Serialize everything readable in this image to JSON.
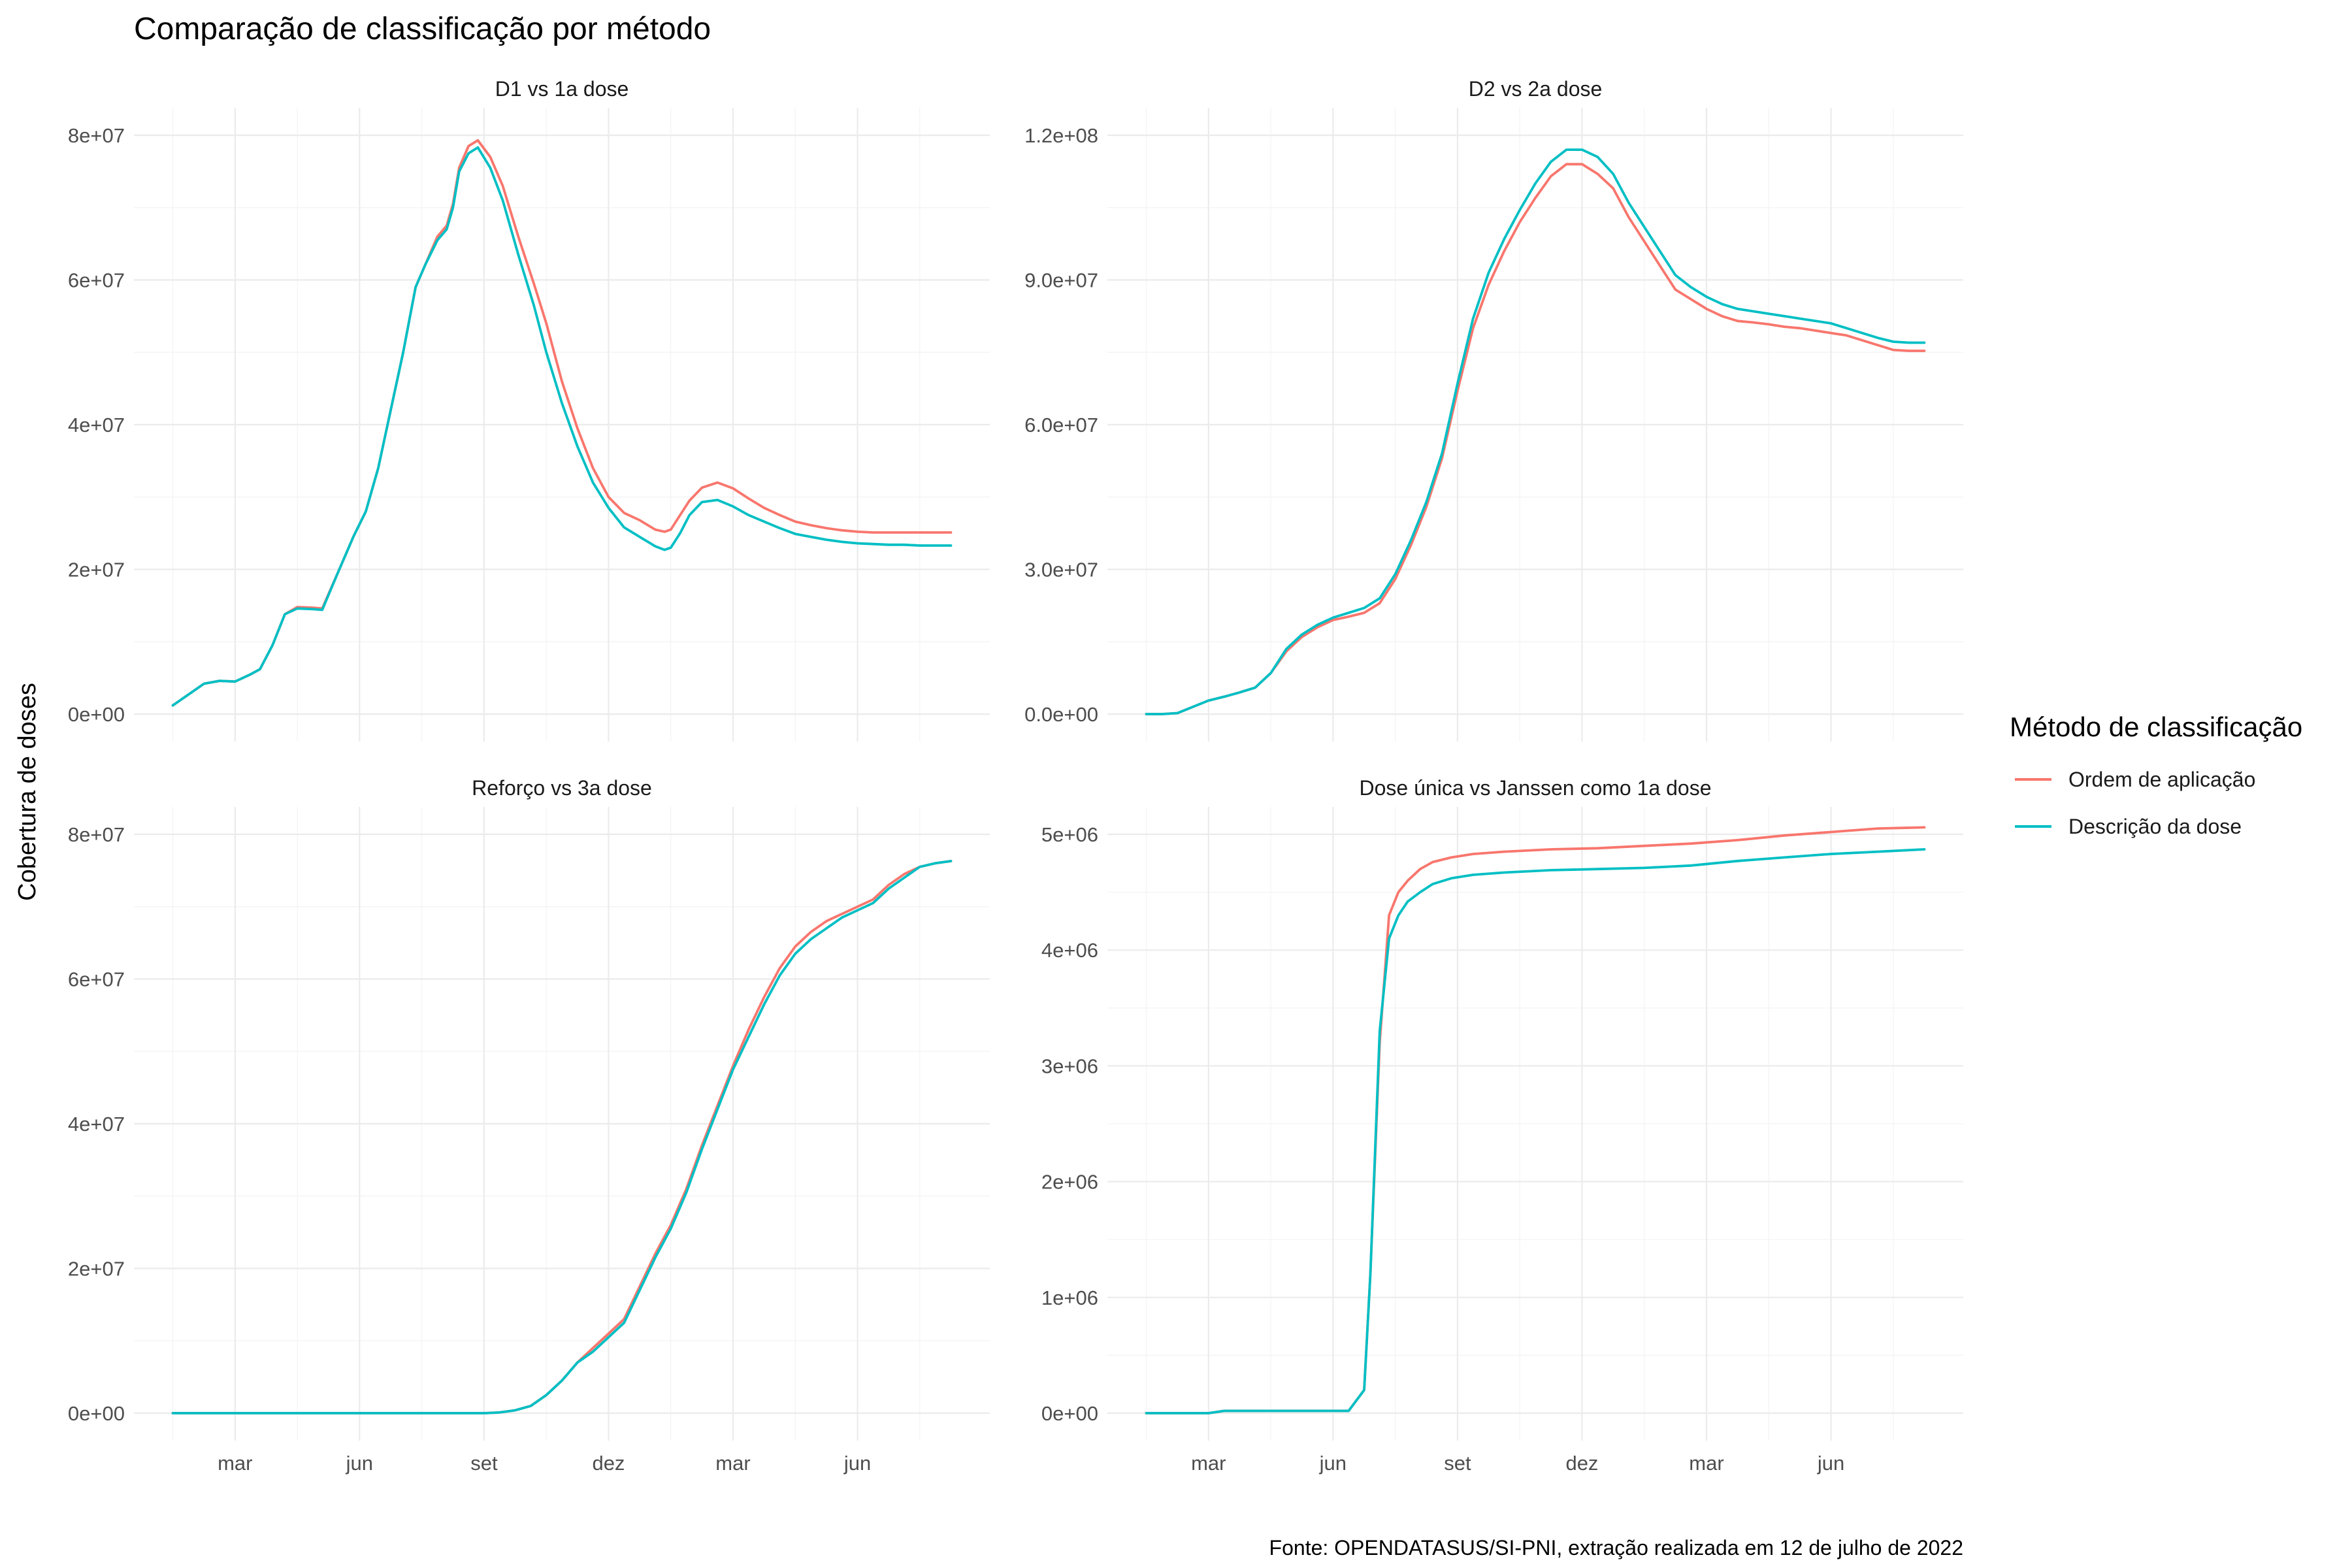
{
  "title": "Comparação de classificação por método",
  "ylabel": "Cobertura de doses",
  "caption": "Fonte: OPENDATASUS/SI-PNI, extração realizada em 12 de julho de 2022",
  "legend": {
    "title": "Método de classificação",
    "items": [
      {
        "label": "Ordem de aplicação",
        "color": "#F8766D"
      },
      {
        "label": "Descrição da dose",
        "color": "#00BFC4"
      }
    ]
  },
  "x_ticks": [
    "mar",
    "jun",
    "set",
    "dez",
    "mar",
    "jun"
  ],
  "chart_data": [
    {
      "type": "line",
      "title": "D1 vs 1a dose",
      "ylim": [
        0,
        80000000
      ],
      "y_ticks": [
        0,
        20000000,
        40000000,
        60000000,
        80000000
      ],
      "y_tick_labels": [
        "0e+00",
        "2e+07",
        "4e+07",
        "6e+07",
        "8e+07"
      ],
      "x": [
        0.0,
        0.6,
        1.0,
        1.5,
        2.0,
        2.5,
        2.8,
        3.2,
        3.6,
        4.0,
        4.5,
        4.8,
        5.3,
        5.8,
        6.2,
        6.6,
        7.0,
        7.4,
        7.8,
        8.1,
        8.5,
        8.8,
        9.0,
        9.2,
        9.5,
        9.8,
        10.2,
        10.6,
        11.1,
        11.6,
        12.0,
        12.5,
        13.0,
        13.5,
        14.0,
        14.5,
        15.0,
        15.5,
        15.8,
        16.0,
        16.3,
        16.6,
        17.0,
        17.5,
        18.0,
        18.5,
        19.0,
        19.5,
        20.0,
        20.5,
        21.0,
        21.5,
        22.0,
        22.5,
        23.0,
        23.5,
        24.0,
        24.5,
        25.0
      ],
      "series": [
        {
          "name": "Ordem de aplicação",
          "values": [
            1200000,
            3000000,
            4200000,
            4600000,
            4500000,
            5500000,
            6200000,
            9500000,
            13800000,
            14800000,
            14700000,
            14600000,
            19500000,
            24500000,
            28000000,
            34000000,
            42000000,
            50000000,
            59000000,
            62000000,
            66000000,
            67500000,
            70500000,
            75500000,
            78500000,
            79300000,
            77000000,
            73000000,
            66000000,
            59500000,
            54000000,
            46000000,
            39500000,
            34000000,
            30000000,
            27800000,
            26800000,
            25500000,
            25200000,
            25500000,
            27500000,
            29500000,
            31300000,
            32000000,
            31200000,
            29800000,
            28500000,
            27500000,
            26600000,
            26100000,
            25700000,
            25400000,
            25200000,
            25100000,
            25100000,
            25100000,
            25100000,
            25100000,
            25100000
          ]
        },
        {
          "name": "Descrição da dose",
          "values": [
            1200000,
            3000000,
            4200000,
            4600000,
            4500000,
            5500000,
            6200000,
            9500000,
            13800000,
            14600000,
            14500000,
            14400000,
            19500000,
            24500000,
            28000000,
            34000000,
            42000000,
            50000000,
            59000000,
            62000000,
            65500000,
            67000000,
            70000000,
            75000000,
            77500000,
            78300000,
            75500000,
            71000000,
            63500000,
            56500000,
            50000000,
            43000000,
            37000000,
            32000000,
            28500000,
            25800000,
            24500000,
            23200000,
            22700000,
            23000000,
            25000000,
            27500000,
            29300000,
            29600000,
            28700000,
            27500000,
            26600000,
            25700000,
            24900000,
            24500000,
            24100000,
            23800000,
            23600000,
            23500000,
            23400000,
            23400000,
            23300000,
            23300000,
            23300000
          ]
        }
      ]
    },
    {
      "type": "line",
      "title": "D2 vs 2a dose",
      "ylim": [
        0,
        120000000
      ],
      "y_ticks": [
        0,
        30000000,
        60000000,
        90000000,
        120000000
      ],
      "y_tick_labels": [
        "0.0e+00",
        "3.0e+07",
        "6.0e+07",
        "9.0e+07",
        "1.2e+08"
      ],
      "x": [
        0.0,
        0.5,
        1.0,
        1.5,
        2.0,
        2.5,
        3.0,
        3.5,
        4.0,
        4.5,
        5.0,
        5.5,
        6.0,
        6.5,
        7.0,
        7.5,
        8.0,
        8.5,
        9.0,
        9.5,
        10.0,
        10.5,
        11.0,
        11.5,
        12.0,
        12.5,
        13.0,
        13.5,
        14.0,
        14.5,
        15.0,
        15.5,
        16.0,
        16.5,
        17.0,
        17.5,
        18.0,
        18.5,
        19.0,
        19.5,
        20.0,
        20.5,
        21.0,
        21.5,
        22.0,
        22.5,
        23.0,
        23.5,
        24.0,
        24.5,
        25.0
      ],
      "series": [
        {
          "name": "Ordem de aplicação",
          "values": [
            0,
            0,
            200000,
            1500000,
            2800000,
            3600000,
            4500000,
            5500000,
            8500000,
            13000000,
            16000000,
            18000000,
            19500000,
            20200000,
            21000000,
            23000000,
            28000000,
            35000000,
            43000000,
            53000000,
            67000000,
            80000000,
            89000000,
            96000000,
            102000000,
            107000000,
            111500000,
            114000000,
            114000000,
            112000000,
            109000000,
            103000000,
            98000000,
            93000000,
            88000000,
            86000000,
            84000000,
            82500000,
            81500000,
            81200000,
            80800000,
            80300000,
            80000000,
            79500000,
            79000000,
            78500000,
            77500000,
            76500000,
            75500000,
            75300000,
            75300000
          ]
        },
        {
          "name": "Descrição da dose",
          "values": [
            0,
            0,
            200000,
            1500000,
            2800000,
            3600000,
            4500000,
            5500000,
            8500000,
            13500000,
            16500000,
            18500000,
            20000000,
            21000000,
            22000000,
            24000000,
            29000000,
            36000000,
            44000000,
            54000000,
            68500000,
            82000000,
            91500000,
            98500000,
            104500000,
            110000000,
            114500000,
            117000000,
            117000000,
            115500000,
            112000000,
            106000000,
            101000000,
            96000000,
            91000000,
            88500000,
            86500000,
            85000000,
            84000000,
            83500000,
            83000000,
            82500000,
            82000000,
            81500000,
            81000000,
            80000000,
            79000000,
            78000000,
            77200000,
            77000000,
            77000000
          ]
        }
      ]
    },
    {
      "type": "line",
      "title": "Reforço vs 3a dose",
      "ylim": [
        0,
        80000000
      ],
      "y_ticks": [
        0,
        20000000,
        40000000,
        60000000,
        80000000
      ],
      "y_tick_labels": [
        "0e+00",
        "2e+07",
        "4e+07",
        "6e+07",
        "8e+07"
      ],
      "x": [
        0.0,
        2.0,
        4.0,
        6.0,
        8.0,
        10.0,
        10.5,
        11.0,
        11.5,
        12.0,
        12.5,
        13.0,
        13.5,
        14.0,
        14.5,
        15.0,
        15.5,
        16.0,
        16.5,
        17.0,
        17.5,
        18.0,
        18.5,
        19.0,
        19.5,
        20.0,
        20.5,
        21.0,
        21.5,
        22.0,
        22.5,
        23.0,
        23.5,
        24.0,
        24.5,
        25.0
      ],
      "series": [
        {
          "name": "Ordem de aplicação",
          "values": [
            0,
            0,
            0,
            0,
            0,
            0,
            100000,
            400000,
            1000000,
            2500000,
            4500000,
            7000000,
            9000000,
            11000000,
            13000000,
            17500000,
            22000000,
            26000000,
            31000000,
            37000000,
            42500000,
            48000000,
            53000000,
            57500000,
            61500000,
            64500000,
            66500000,
            68000000,
            69000000,
            70000000,
            71000000,
            73000000,
            74500000,
            75500000,
            76000000,
            76300000
          ]
        },
        {
          "name": "Descrição da dose",
          "values": [
            0,
            0,
            0,
            0,
            0,
            0,
            100000,
            400000,
            1000000,
            2500000,
            4500000,
            7000000,
            8500000,
            10500000,
            12500000,
            17000000,
            21500000,
            25500000,
            30500000,
            36500000,
            42000000,
            47500000,
            52000000,
            56500000,
            60500000,
            63500000,
            65500000,
            67000000,
            68500000,
            69500000,
            70500000,
            72500000,
            74000000,
            75500000,
            76000000,
            76300000
          ]
        }
      ]
    },
    {
      "type": "line",
      "title": "Dose única vs Janssen como 1a dose",
      "ylim": [
        0,
        5000000
      ],
      "y_ticks": [
        0,
        1000000,
        2000000,
        3000000,
        4000000,
        5000000
      ],
      "y_tick_labels": [
        "0e+00",
        "1e+06",
        "2e+06",
        "3e+06",
        "4e+06",
        "5e+06"
      ],
      "x": [
        0.0,
        2.0,
        2.5,
        4.0,
        6.0,
        6.5,
        7.0,
        7.2,
        7.5,
        7.8,
        8.1,
        8.4,
        8.8,
        9.2,
        9.8,
        10.5,
        11.5,
        13.0,
        14.5,
        16.0,
        17.5,
        19.0,
        20.5,
        22.0,
        23.5,
        25.0
      ],
      "series": [
        {
          "name": "Ordem de aplicação",
          "values": [
            0,
            0,
            20000,
            20000,
            20000,
            20000,
            200000,
            1200000,
            3200000,
            4300000,
            4500000,
            4600000,
            4700000,
            4760000,
            4800000,
            4830000,
            4850000,
            4870000,
            4880000,
            4900000,
            4920000,
            4950000,
            4990000,
            5020000,
            5050000,
            5060000
          ]
        },
        {
          "name": "Descrição da dose",
          "values": [
            0,
            0,
            20000,
            20000,
            20000,
            20000,
            200000,
            1200000,
            3300000,
            4100000,
            4300000,
            4420000,
            4500000,
            4570000,
            4620000,
            4650000,
            4670000,
            4690000,
            4700000,
            4710000,
            4730000,
            4770000,
            4800000,
            4830000,
            4850000,
            4870000
          ]
        }
      ]
    }
  ]
}
